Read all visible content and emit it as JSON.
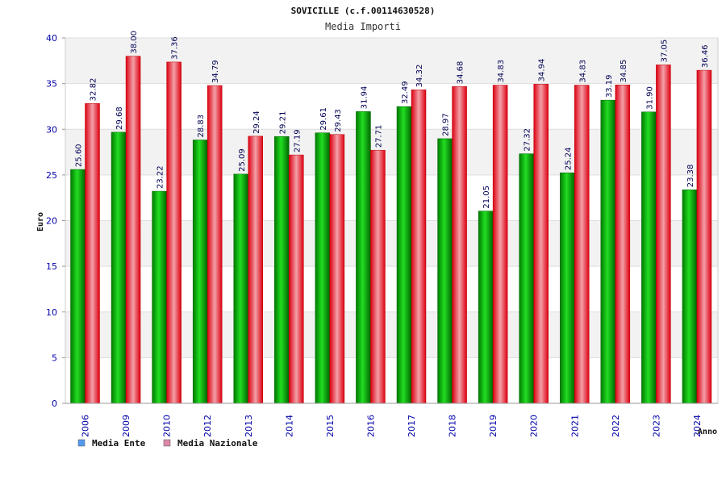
{
  "chart_data": {
    "type": "bar",
    "title": "SOVICILLE (c.f.00114630528)",
    "subtitle": "Media Importi",
    "ylabel": "Euro",
    "xlabel": "Anno",
    "ylim": [
      0,
      40
    ],
    "yticks": [
      0,
      5,
      10,
      15,
      20,
      25,
      30,
      35,
      40
    ],
    "categories": [
      "2006",
      "2009",
      "2010",
      "2012",
      "2013",
      "2014",
      "2015",
      "2016",
      "2017",
      "2018",
      "2019",
      "2020",
      "2021",
      "2022",
      "2023",
      "2024"
    ],
    "series": [
      {
        "name": "Media Ente",
        "color": "#00aa00",
        "values": [
          25.6,
          29.68,
          23.22,
          28.83,
          25.09,
          29.21,
          29.61,
          31.94,
          32.49,
          28.97,
          21.05,
          27.32,
          25.24,
          33.19,
          31.9,
          23.38
        ],
        "labels": [
          "25.60",
          "29.68",
          "23.22",
          "28.83",
          "25.09",
          "29.21",
          "29.61",
          "31.94",
          "32.49",
          "28.97",
          "21.05",
          "27.32",
          "25.24",
          "33.19",
          "31.90",
          "23.38"
        ]
      },
      {
        "name": "Media Nazionale",
        "color": "#ee1122",
        "values": [
          32.82,
          38.0,
          37.36,
          34.79,
          29.24,
          27.19,
          29.43,
          27.71,
          34.32,
          34.68,
          34.83,
          34.94,
          34.83,
          34.85,
          37.05,
          36.46
        ],
        "labels": [
          "32.82",
          "38.00",
          "37.36",
          "34.79",
          "29.24",
          "27.19",
          "29.43",
          "27.71",
          "34.32",
          "34.68",
          "34.83",
          "34.94",
          "34.83",
          "34.85",
          "37.05",
          "36.46"
        ]
      }
    ],
    "legend": [
      {
        "label": "Media Ente",
        "color": "#5599ee"
      },
      {
        "label": "Media Nazionale",
        "color": "#dd88aa"
      }
    ],
    "grid": true,
    "legend_position": "bottom-left"
  }
}
